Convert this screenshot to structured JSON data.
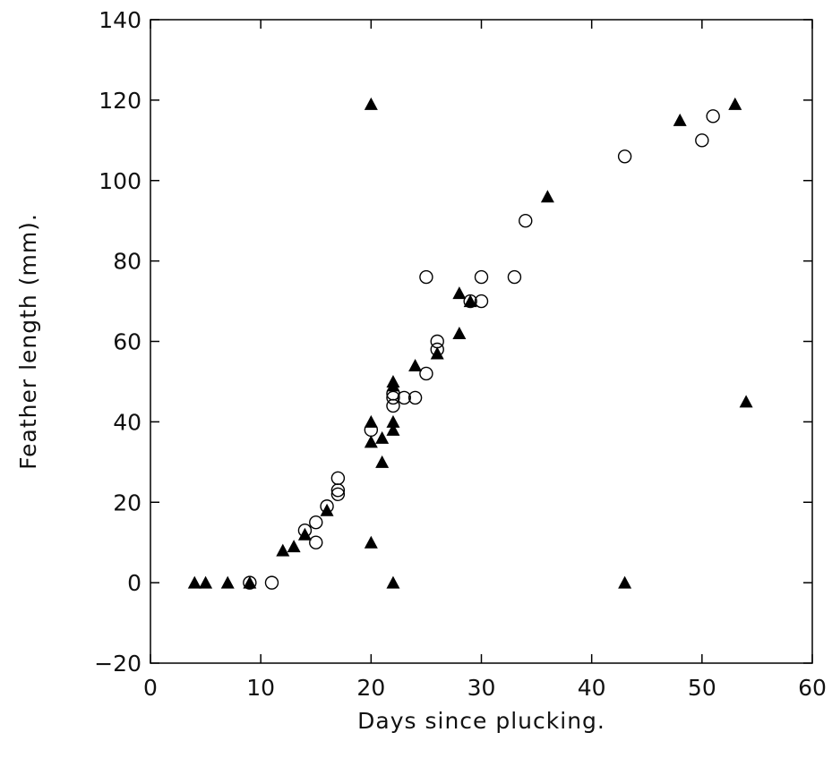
{
  "chart_data": {
    "type": "scatter",
    "title": "",
    "xlabel": "Days since plucking.",
    "ylabel": "Feather length (mm).",
    "xlim": [
      0,
      60
    ],
    "ylim": [
      -20,
      140
    ],
    "xticks": [
      0,
      10,
      20,
      30,
      40,
      50,
      60
    ],
    "yticks": [
      -20,
      0,
      20,
      40,
      60,
      80,
      100,
      120,
      140
    ],
    "grid": false,
    "legend": "none",
    "series": [
      {
        "marker": "open-circle",
        "color": "#000000",
        "points": [
          [
            9,
            0
          ],
          [
            11,
            0
          ],
          [
            14,
            13
          ],
          [
            15,
            15
          ],
          [
            15,
            10
          ],
          [
            16,
            19
          ],
          [
            17,
            26
          ],
          [
            17,
            23
          ],
          [
            17,
            22
          ],
          [
            20,
            38
          ],
          [
            22,
            44
          ],
          [
            22,
            46
          ],
          [
            22,
            47
          ],
          [
            23,
            46
          ],
          [
            24,
            46
          ],
          [
            25,
            52
          ],
          [
            25,
            76
          ],
          [
            26,
            60
          ],
          [
            26,
            58
          ],
          [
            29,
            70
          ],
          [
            30,
            76
          ],
          [
            30,
            70
          ],
          [
            33,
            76
          ],
          [
            34,
            90
          ],
          [
            43,
            106
          ],
          [
            50,
            110
          ],
          [
            51,
            116
          ]
        ]
      },
      {
        "marker": "filled-triangle",
        "color": "#000000",
        "points": [
          [
            4,
            0
          ],
          [
            5,
            0
          ],
          [
            7,
            0
          ],
          [
            9,
            0
          ],
          [
            12,
            8
          ],
          [
            13,
            9
          ],
          [
            14,
            12
          ],
          [
            16,
            18
          ],
          [
            20,
            35
          ],
          [
            20,
            40
          ],
          [
            20,
            10
          ],
          [
            20,
            119
          ],
          [
            21,
            30
          ],
          [
            21,
            36
          ],
          [
            22,
            38
          ],
          [
            22,
            40
          ],
          [
            22,
            49
          ],
          [
            22,
            50
          ],
          [
            22,
            0
          ],
          [
            24,
            54
          ],
          [
            26,
            57
          ],
          [
            28,
            72
          ],
          [
            28,
            62
          ],
          [
            29,
            70
          ],
          [
            36,
            96
          ],
          [
            43,
            0
          ],
          [
            48,
            115
          ],
          [
            53,
            119
          ],
          [
            54,
            45
          ]
        ]
      }
    ]
  }
}
